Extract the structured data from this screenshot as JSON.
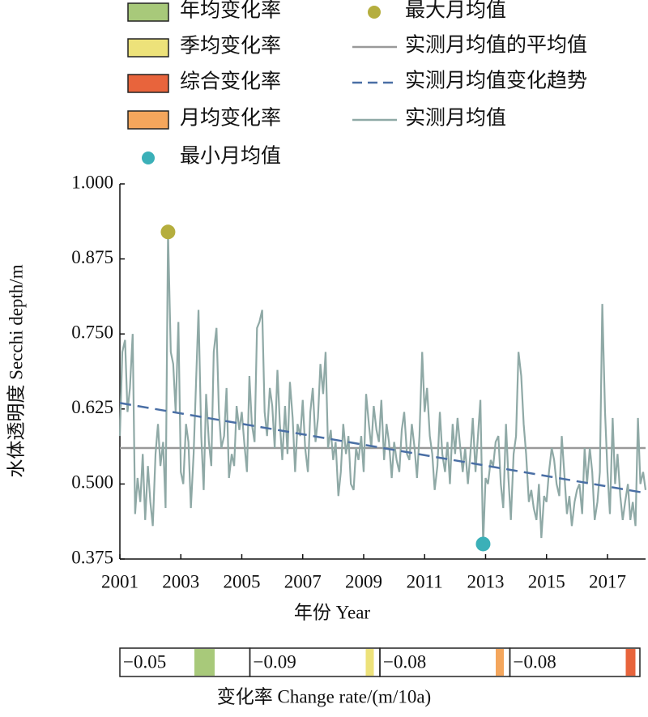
{
  "chart_data": {
    "type": "line",
    "xlabel": "年份 Year",
    "ylabel": "水体透明度 Secchi depth/m",
    "xlim": [
      2001,
      2018.25
    ],
    "ylim": [
      0.375,
      1.0
    ],
    "xticks": [
      2001,
      2003,
      2005,
      2007,
      2009,
      2011,
      2013,
      2015,
      2017
    ],
    "yticks": [
      {
        "value": 1.0,
        "label": "1.000"
      },
      {
        "value": 0.875,
        "label": "0.875"
      },
      {
        "value": 0.75,
        "label": "0.750"
      },
      {
        "value": 0.625,
        "label": "0.625"
      },
      {
        "value": 0.5,
        "label": "0.500"
      },
      {
        "value": 0.375,
        "label": "0.375"
      }
    ],
    "series": [
      {
        "name": "实测月均值",
        "kind": "line",
        "color": "#8fa9a6",
        "x": [
          2001,
          2001.08,
          2001.17,
          2001.25,
          2001.33,
          2001.42,
          2001.5,
          2001.58,
          2001.67,
          2001.75,
          2001.83,
          2001.92,
          2002,
          2002.08,
          2002.17,
          2002.25,
          2002.33,
          2002.42,
          2002.5,
          2002.58,
          2002.67,
          2002.75,
          2002.83,
          2002.92,
          2003,
          2003.08,
          2003.17,
          2003.25,
          2003.33,
          2003.42,
          2003.5,
          2003.58,
          2003.67,
          2003.75,
          2003.83,
          2003.92,
          2004,
          2004.08,
          2004.17,
          2004.25,
          2004.33,
          2004.42,
          2004.5,
          2004.58,
          2004.67,
          2004.75,
          2004.83,
          2004.92,
          2005,
          2005.08,
          2005.17,
          2005.25,
          2005.33,
          2005.42,
          2005.5,
          2005.58,
          2005.67,
          2005.75,
          2005.83,
          2005.92,
          2006,
          2006.08,
          2006.17,
          2006.25,
          2006.33,
          2006.42,
          2006.5,
          2006.58,
          2006.67,
          2006.75,
          2006.83,
          2006.92,
          2007,
          2007.08,
          2007.17,
          2007.25,
          2007.33,
          2007.42,
          2007.5,
          2007.58,
          2007.67,
          2007.75,
          2007.83,
          2007.92,
          2008,
          2008.08,
          2008.17,
          2008.25,
          2008.33,
          2008.42,
          2008.5,
          2008.58,
          2008.67,
          2008.75,
          2008.83,
          2008.92,
          2009,
          2009.08,
          2009.17,
          2009.25,
          2009.33,
          2009.42,
          2009.5,
          2009.58,
          2009.67,
          2009.75,
          2009.83,
          2009.92,
          2010,
          2010.08,
          2010.17,
          2010.25,
          2010.33,
          2010.42,
          2010.5,
          2010.58,
          2010.67,
          2010.75,
          2010.83,
          2010.92,
          2011,
          2011.08,
          2011.17,
          2011.25,
          2011.33,
          2011.42,
          2011.5,
          2011.58,
          2011.67,
          2011.75,
          2011.83,
          2011.92,
          2012,
          2012.08,
          2012.17,
          2012.25,
          2012.33,
          2012.42,
          2012.5,
          2012.58,
          2012.67,
          2012.75,
          2012.83,
          2012.92,
          2013,
          2013.08,
          2013.17,
          2013.25,
          2013.33,
          2013.42,
          2013.5,
          2013.58,
          2013.67,
          2013.75,
          2013.83,
          2013.92,
          2014,
          2014.08,
          2014.17,
          2014.25,
          2014.33,
          2014.42,
          2014.5,
          2014.58,
          2014.67,
          2014.75,
          2014.83,
          2014.92,
          2015,
          2015.08,
          2015.17,
          2015.25,
          2015.33,
          2015.42,
          2015.5,
          2015.58,
          2015.67,
          2015.75,
          2015.83,
          2015.92,
          2016,
          2016.08,
          2016.17,
          2016.25,
          2016.33,
          2016.42,
          2016.5,
          2016.58,
          2016.67,
          2016.75,
          2016.83,
          2016.92,
          2017,
          2017.08,
          2017.17,
          2017.25,
          2017.33,
          2017.42,
          2017.5,
          2017.58,
          2017.67,
          2017.75,
          2017.83,
          2017.92,
          2018,
          2018.08,
          2018.17,
          2018.25
        ],
        "values": [
          0.58,
          0.72,
          0.74,
          0.62,
          0.66,
          0.75,
          0.45,
          0.51,
          0.47,
          0.55,
          0.44,
          0.53,
          0.47,
          0.43,
          0.55,
          0.6,
          0.53,
          0.57,
          0.46,
          0.92,
          0.72,
          0.7,
          0.62,
          0.77,
          0.52,
          0.5,
          0.6,
          0.57,
          0.46,
          0.55,
          0.67,
          0.79,
          0.58,
          0.49,
          0.65,
          0.57,
          0.53,
          0.72,
          0.76,
          0.62,
          0.56,
          0.58,
          0.66,
          0.51,
          0.55,
          0.53,
          0.63,
          0.59,
          0.62,
          0.57,
          0.52,
          0.68,
          0.6,
          0.57,
          0.76,
          0.77,
          0.79,
          0.62,
          0.58,
          0.66,
          0.63,
          0.56,
          0.69,
          0.6,
          0.54,
          0.63,
          0.55,
          0.67,
          0.61,
          0.52,
          0.6,
          0.58,
          0.64,
          0.56,
          0.52,
          0.62,
          0.66,
          0.57,
          0.61,
          0.7,
          0.65,
          0.72,
          0.56,
          0.59,
          0.54,
          0.57,
          0.48,
          0.52,
          0.6,
          0.55,
          0.58,
          0.5,
          0.49,
          0.56,
          0.54,
          0.58,
          0.52,
          0.65,
          0.6,
          0.56,
          0.63,
          0.59,
          0.57,
          0.64,
          0.54,
          0.6,
          0.57,
          0.51,
          0.57,
          0.54,
          0.52,
          0.59,
          0.62,
          0.55,
          0.54,
          0.6,
          0.56,
          0.51,
          0.58,
          0.72,
          0.62,
          0.66,
          0.58,
          0.55,
          0.49,
          0.53,
          0.62,
          0.55,
          0.52,
          0.57,
          0.5,
          0.6,
          0.55,
          0.61,
          0.56,
          0.52,
          0.56,
          0.5,
          0.55,
          0.61,
          0.52,
          0.58,
          0.64,
          0.4,
          0.51,
          0.5,
          0.54,
          0.53,
          0.57,
          0.58,
          0.5,
          0.46,
          0.6,
          0.51,
          0.44,
          0.55,
          0.58,
          0.72,
          0.68,
          0.6,
          0.55,
          0.47,
          0.49,
          0.46,
          0.44,
          0.5,
          0.41,
          0.48,
          0.47,
          0.52,
          0.56,
          0.54,
          0.5,
          0.48,
          0.58,
          0.52,
          0.45,
          0.48,
          0.43,
          0.47,
          0.49,
          0.5,
          0.45,
          0.56,
          0.5,
          0.56,
          0.52,
          0.44,
          0.47,
          0.52,
          0.8,
          0.62,
          0.52,
          0.45,
          0.61,
          0.5,
          0.55,
          0.48,
          0.44,
          0.47,
          0.5,
          0.44,
          0.47,
          0.43,
          0.61,
          0.5,
          0.52,
          0.49
        ]
      },
      {
        "name": "实测月均值的平均值",
        "kind": "hline",
        "color": "#999999",
        "value": 0.56
      },
      {
        "name": "实测月均值变化趋势",
        "kind": "dashed",
        "color": "#4a6fa5",
        "x": [
          2001,
          2018.25
        ],
        "values": [
          0.635,
          0.485
        ]
      },
      {
        "name": "最大月均值",
        "kind": "point",
        "color": "#b5ae3e",
        "x": [
          2002.58
        ],
        "values": [
          0.92
        ]
      },
      {
        "name": "最小月均值",
        "kind": "point",
        "color": "#3bb0b8",
        "x": [
          2012.92
        ],
        "values": [
          0.4
        ]
      }
    ],
    "rate_label": "变化率 Change rate/(m/10a)",
    "rates": [
      {
        "name": "年均变化率",
        "color": "#a8c97a",
        "value": -0.05,
        "label": "−0.05"
      },
      {
        "name": "季均变化率",
        "color": "#ede27a",
        "value": -0.09,
        "label": "−0.09"
      },
      {
        "name": "综合变化率",
        "color": "#e8643c",
        "value": -0.08,
        "label": "−0.08"
      },
      {
        "name": "月均变化率",
        "color": "#f4a65c",
        "value": -0.08,
        "label": "−0.08"
      }
    ]
  }
}
